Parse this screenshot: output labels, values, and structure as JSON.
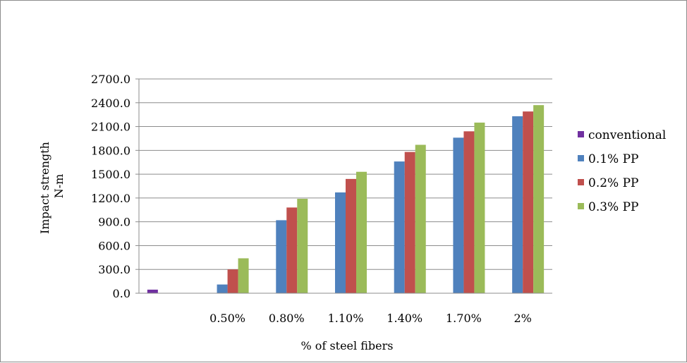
{
  "chart_data": {
    "type": "bar",
    "title": "",
    "xlabel": "% of steel fibers",
    "ylabel": [
      "Impact strength",
      "N-m"
    ],
    "categories": [
      "",
      "0.50%",
      "0.80%",
      "1.10%",
      "1.40%",
      "1.70%",
      "2%"
    ],
    "ylim": [
      0,
      2700
    ],
    "yticks": [
      "0.0",
      "300.0",
      "600.0",
      "900.0",
      "1200.0",
      "1500.0",
      "1800.0",
      "2100.0",
      "2400.0",
      "2700.0"
    ],
    "grid": true,
    "legend_position": "right",
    "series": [
      {
        "name": "conventional",
        "color": "#7030a0",
        "values": [
          45,
          null,
          null,
          null,
          null,
          null,
          null
        ]
      },
      {
        "name": "0.1% PP",
        "color": "#4f81bd",
        "values": [
          null,
          110,
          920,
          1270,
          1660,
          1960,
          2230
        ]
      },
      {
        "name": "0.2% PP",
        "color": "#c0504d",
        "values": [
          null,
          300,
          1080,
          1440,
          1780,
          2040,
          2290
        ]
      },
      {
        "name": "0.3% PP",
        "color": "#9bbb59",
        "values": [
          null,
          440,
          1190,
          1530,
          1870,
          2150,
          2370
        ]
      }
    ]
  }
}
